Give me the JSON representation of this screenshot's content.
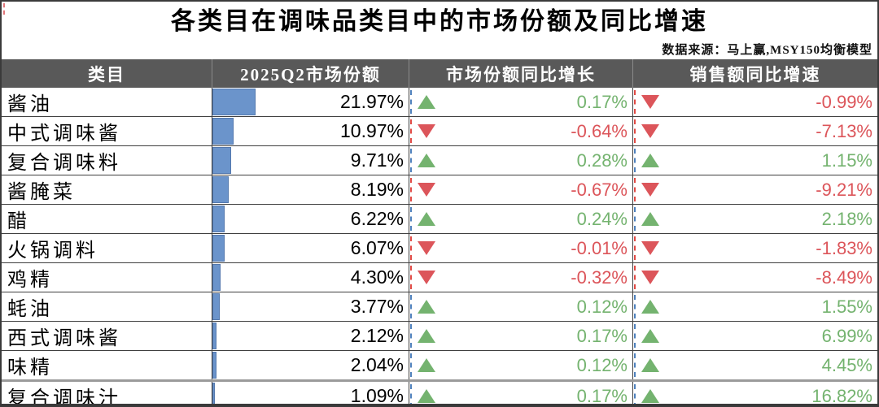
{
  "title": "各类目在调味品类目中的市场份额及同比增速",
  "source_note": "数据来源：马上赢,MSY150均衡模型",
  "table": {
    "columns": [
      "类目",
      "2025Q2市场份额",
      "市场份额同比增长",
      "销售额同比增速"
    ]
  },
  "colors": {
    "bar_blue": "#6B94CB",
    "positive_green": "#74B36F",
    "negative_red": "#DC555A",
    "positive_sliver": "#4F81BD",
    "negative_sliver": "#E04A45",
    "header_bg": "#595959",
    "header_text": "#FFFFFF",
    "frame_border": "#3A3A3A"
  },
  "chart_data": {
    "type": "table",
    "title": "各类目在调味品类目中的市场份额及同比增速",
    "columns": [
      "类目",
      "2025Q2市场份额",
      "市场份额同比增长",
      "销售额同比增速"
    ],
    "share_bar_scale_max_pct": 100,
    "rows": [
      {
        "category": "酱油",
        "share_pct": 21.97,
        "share_label": "21.97%",
        "share_yoy_pct": 0.17,
        "share_yoy_label": "0.17%",
        "sales_yoy_pct": -0.99,
        "sales_yoy_label": "-0.99%"
      },
      {
        "category": "中式调味酱",
        "share_pct": 10.97,
        "share_label": "10.97%",
        "share_yoy_pct": -0.64,
        "share_yoy_label": "-0.64%",
        "sales_yoy_pct": -7.13,
        "sales_yoy_label": "-7.13%"
      },
      {
        "category": "复合调味料",
        "share_pct": 9.71,
        "share_label": "9.71%",
        "share_yoy_pct": 0.28,
        "share_yoy_label": "0.28%",
        "sales_yoy_pct": 1.15,
        "sales_yoy_label": "1.15%"
      },
      {
        "category": "酱腌菜",
        "share_pct": 8.19,
        "share_label": "8.19%",
        "share_yoy_pct": -0.67,
        "share_yoy_label": "-0.67%",
        "sales_yoy_pct": -9.21,
        "sales_yoy_label": "-9.21%"
      },
      {
        "category": "醋",
        "share_pct": 6.22,
        "share_label": "6.22%",
        "share_yoy_pct": 0.24,
        "share_yoy_label": "0.24%",
        "sales_yoy_pct": 2.18,
        "sales_yoy_label": "2.18%"
      },
      {
        "category": "火锅调料",
        "share_pct": 6.07,
        "share_label": "6.07%",
        "share_yoy_pct": -0.01,
        "share_yoy_label": "-0.01%",
        "sales_yoy_pct": -1.83,
        "sales_yoy_label": "-1.83%"
      },
      {
        "category": "鸡精",
        "share_pct": 4.3,
        "share_label": "4.30%",
        "share_yoy_pct": -0.32,
        "share_yoy_label": "-0.32%",
        "sales_yoy_pct": -8.49,
        "sales_yoy_label": "-8.49%"
      },
      {
        "category": "蚝油",
        "share_pct": 3.77,
        "share_label": "3.77%",
        "share_yoy_pct": 0.12,
        "share_yoy_label": "0.12%",
        "sales_yoy_pct": 1.55,
        "sales_yoy_label": "1.55%"
      },
      {
        "category": "西式调味酱",
        "share_pct": 2.12,
        "share_label": "2.12%",
        "share_yoy_pct": 0.17,
        "share_yoy_label": "0.17%",
        "sales_yoy_pct": 6.99,
        "sales_yoy_label": "6.99%"
      },
      {
        "category": "味精",
        "share_pct": 2.04,
        "share_label": "2.04%",
        "share_yoy_pct": 0.12,
        "share_yoy_label": "0.12%",
        "sales_yoy_pct": 4.45,
        "sales_yoy_label": "4.45%"
      },
      {
        "category": "复合调味汁",
        "share_pct": 1.09,
        "share_label": "1.09%",
        "share_yoy_pct": 0.17,
        "share_yoy_label": "0.17%",
        "sales_yoy_pct": 16.82,
        "sales_yoy_label": "16.82%"
      }
    ]
  }
}
